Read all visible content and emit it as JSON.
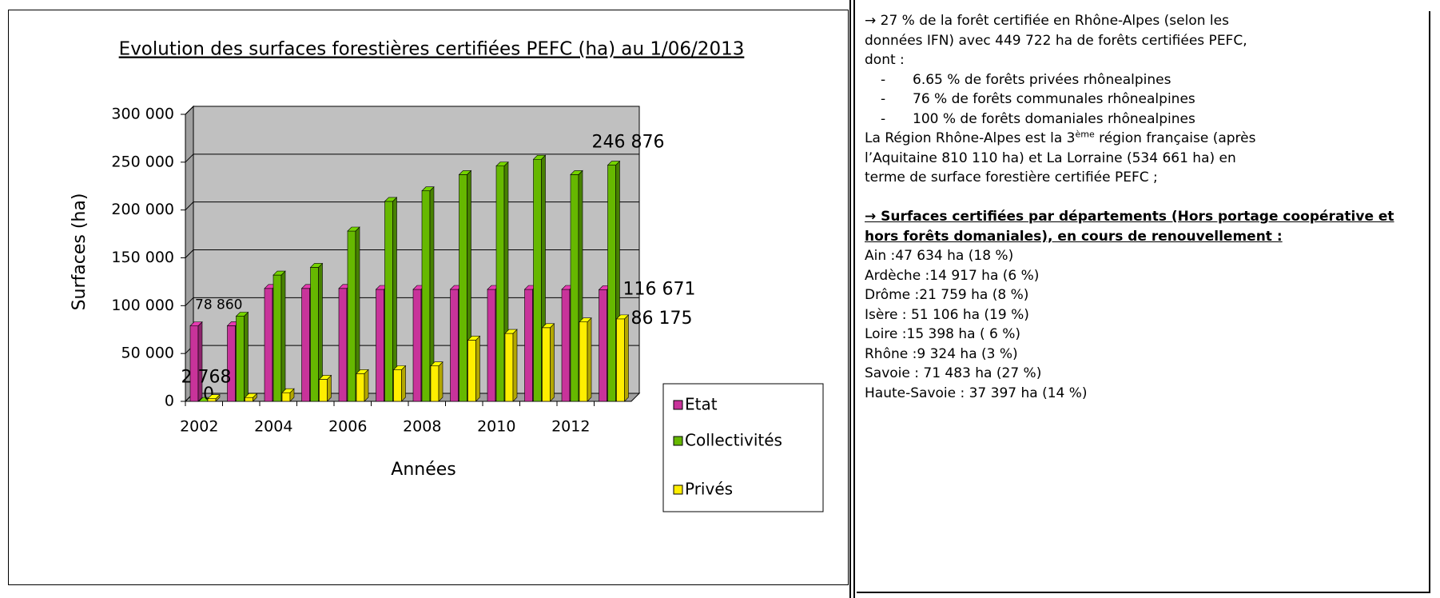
{
  "chart_data": {
    "type": "bar3d",
    "title": "Evolution des surfaces forestières certifiées PEFC (ha) au 1/06/2013",
    "x_label": "Années",
    "y_label": "Surfaces (ha)",
    "categories": [
      "2002",
      null,
      "2004",
      null,
      "2006",
      null,
      "2008",
      null,
      "2010",
      null,
      "2012",
      null
    ],
    "series": [
      {
        "name": "Etat",
        "color": "#c8339a",
        "values": [
          78860,
          79000,
          118000,
          118000,
          118000,
          117000,
          117000,
          117000,
          117000,
          117000,
          117000,
          116671
        ],
        "value_labels": [
          "78 860",
          null,
          null,
          null,
          null,
          null,
          null,
          null,
          null,
          null,
          null,
          "116 671"
        ]
      },
      {
        "name": "Collectivités",
        "color": "#66b800",
        "values": [
          0,
          89000,
          132000,
          140000,
          178000,
          209000,
          220000,
          237000,
          246000,
          253000,
          237000,
          246876
        ],
        "value_labels": [
          "0",
          null,
          null,
          null,
          null,
          null,
          null,
          null,
          null,
          null,
          null,
          "246 876"
        ]
      },
      {
        "name": "Privés",
        "color": "#ffee00",
        "values": [
          2768,
          4000,
          9000,
          23000,
          29000,
          33000,
          37000,
          64000,
          71000,
          77000,
          83000,
          86175
        ],
        "value_labels": [
          "2 768",
          null,
          null,
          null,
          null,
          null,
          null,
          null,
          null,
          null,
          null,
          "86 175"
        ]
      }
    ],
    "ylim": [
      0,
      300000
    ],
    "yticks": [
      0,
      {
        "value": 50000,
        "label": "50 000"
      },
      {
        "value": 100000,
        "label": "100 000"
      },
      {
        "value": 150000,
        "label": "150 000"
      },
      {
        "value": 200000,
        "label": "200 000"
      },
      {
        "value": 250000,
        "label": "250 000"
      },
      {
        "value": 300000,
        "label": "300 000"
      }
    ],
    "grid": true,
    "legend": "lower right"
  },
  "text_panel": {
    "intro": "→ 27 % de la forêt certifiée en Rhône-Alpes (selon les données IFN) avec 449 722 ha de forêts certifiées PEFC, dont :",
    "bullets": [
      "6.65 % de forêts privées rhônealpines",
      "76 % de forêts communales rhônealpines",
      "100 % de forêts domaniales rhônealpines"
    ],
    "region_before": "La Région Rhône-Alpes est la 3",
    "region_sup": "ème",
    "region_after": " région française (après l’Aquitaine 810 110  ha) et La Lorraine (534 661 ha) en terme de surface forestière certifiée PEFC ;",
    "heading": "→ Surfaces certifiées par départements (Hors portage coopérative et hors forêts domaniales), en cours de renouvellement :",
    "departments": [
      "Ain :47 634 ha (18 %)",
      "Ardèche :14 917 ha (6 %)",
      "Drôme :21 759 ha (8 %)",
      "Isère : 51 106 ha (19 %)",
      "Loire :15 398 ha ( 6 %)",
      "Rhône :9 324 ha (3 %)",
      "Savoie : 71 483 ha (27 %)",
      "Haute-Savoie : 37 397 ha (14 %)"
    ]
  }
}
